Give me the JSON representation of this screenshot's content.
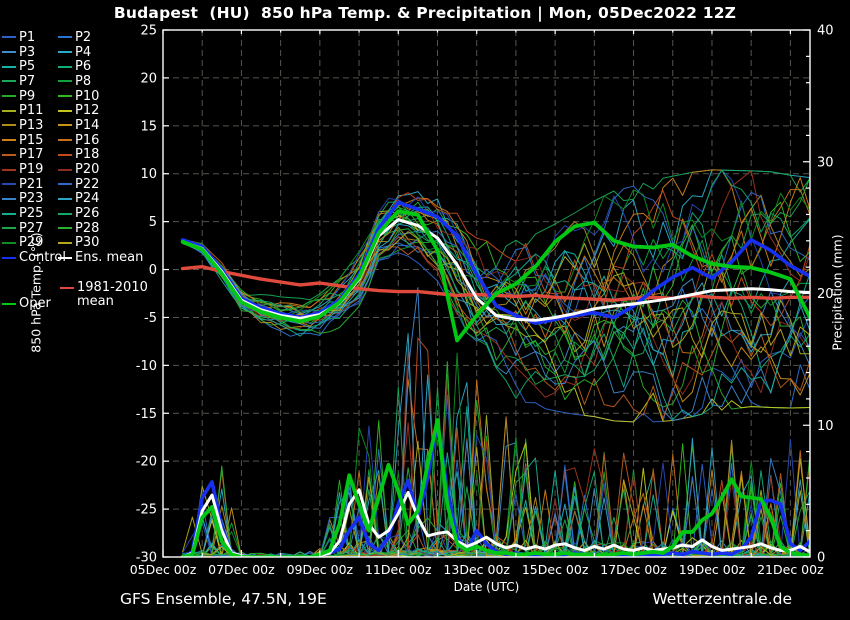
{
  "title": "Budapest  (HU)  850 hPa Temp. & Precipitation | Mon, 05Dec2022 12Z",
  "footer": {
    "left": "GFS Ensemble, 47.5N, 19E",
    "right": "Wetterzentrale.de"
  },
  "colors": {
    "background": "#000000",
    "frame": "#ffffff",
    "grid": "#55554d",
    "control": "#1730f0",
    "ens_mean": "#ffffff",
    "oper": "#00c814",
    "climate": "#e04a3c",
    "members": [
      "#2e62c8",
      "#2a74d4",
      "#3e8cc8",
      "#28aac8",
      "#14b4a4",
      "#10ac7c",
      "#18a858",
      "#10a03c",
      "#28aa28",
      "#30b81e",
      "#a8b020",
      "#c4c420",
      "#b08c1c",
      "#c89418",
      "#cc8018",
      "#c87018",
      "#b85c1c",
      "#c44a1c",
      "#a03420",
      "#8c2c20",
      "#2848b4",
      "#2e6ac8",
      "#3c84c8",
      "#2ca4c4",
      "#16ae90",
      "#14a868",
      "#1ca64c",
      "#28b030",
      "#108c22",
      "#b4a81e"
    ]
  },
  "legend": {
    "member_labels": [
      "P1",
      "P2",
      "P3",
      "P4",
      "P5",
      "P6",
      "P7",
      "P8",
      "P9",
      "P10",
      "P11",
      "P12",
      "P13",
      "P14",
      "P15",
      "P16",
      "P17",
      "P18",
      "P19",
      "P20",
      "P21",
      "P22",
      "P23",
      "P24",
      "P25",
      "P26",
      "P27",
      "P28",
      "P29",
      "P30"
    ],
    "control_label": "Control",
    "ens_mean_label": "Ens. mean",
    "oper_label": "Oper",
    "climate_label": "1981-2010 mean"
  },
  "chart_data": {
    "type": "line",
    "title": "Budapest (HU) 850 hPa Temp. & Precipitation | Mon, 05Dec2022 12Z",
    "xlabel": "Date (UTC)",
    "ylabel_left": "850 hPa Temp. (°C)",
    "ylabel_right": "Precipitation (mm)",
    "x_range_days": [
      0,
      16.5
    ],
    "ylim_left": [
      -30,
      25
    ],
    "ylim_right": [
      0,
      40
    ],
    "grid": "dashed",
    "axes": {
      "temp_ticks": [
        25,
        20,
        15,
        10,
        5,
        0,
        -5,
        -10,
        -15,
        -20,
        -25,
        -30
      ],
      "grid_temp_lines": [
        20,
        15,
        10,
        5,
        0,
        -5,
        -10,
        -15,
        -20,
        -25
      ],
      "precip_ticks": [
        40,
        30,
        20,
        10,
        0
      ],
      "precip_minor_step": 2,
      "x_minor_step_days": 1,
      "x_major": [
        {
          "day": 0,
          "label": "05Dec 00z"
        },
        {
          "day": 2,
          "label": "07Dec 00z"
        },
        {
          "day": 4,
          "label": "09Dec 00z"
        },
        {
          "day": 6,
          "label": "11Dec 00z"
        },
        {
          "day": 8,
          "label": "13Dec 00z"
        },
        {
          "day": 10,
          "label": "15Dec 00z"
        },
        {
          "day": 12,
          "label": "17Dec 00z"
        },
        {
          "day": 14,
          "label": "19Dec 00z"
        },
        {
          "day": 16,
          "label": "21Dec 00z"
        }
      ]
    },
    "series_start_day": 0.5,
    "temp_step_days": 0.5,
    "precip_step_days": 0.25,
    "series": {
      "ens_mean_temp": [
        2.9,
        2.2,
        -0.2,
        -3.2,
        -4.2,
        -4.8,
        -5.1,
        -4.7,
        -3.5,
        -1.0,
        3.5,
        5.2,
        4.6,
        3.3,
        0.5,
        -3.0,
        -4.8,
        -5.2,
        -5.3,
        -5.0,
        -4.6,
        -4.1,
        -3.8,
        -3.6,
        -3.3,
        -3.0,
        -2.6,
        -2.2,
        -2.1,
        -2.0,
        -2.1,
        -2.3,
        -2.4
      ],
      "control_temp": [
        3.1,
        2.4,
        0.0,
        -3.0,
        -4.0,
        -4.6,
        -5.0,
        -4.5,
        -3.2,
        -0.5,
        4.3,
        7.0,
        6.3,
        5.5,
        3.5,
        -0.5,
        -3.8,
        -4.8,
        -5.6,
        -5.2,
        -4.8,
        -4.5,
        -5.0,
        -3.8,
        -2.2,
        -0.8,
        0.2,
        -0.9,
        0.8,
        3.1,
        2.0,
        0.4,
        -0.7
      ],
      "oper_temp": [
        2.9,
        2.1,
        -0.4,
        -3.4,
        -4.4,
        -5.0,
        -5.4,
        -4.9,
        -3.4,
        -0.8,
        3.8,
        6.1,
        5.7,
        2.0,
        -7.4,
        -4.8,
        -2.5,
        -1.5,
        0.3,
        2.9,
        4.5,
        4.9,
        3.0,
        2.4,
        2.3,
        2.6,
        1.4,
        0.6,
        0.3,
        0.2,
        -0.3,
        -1.0,
        -5.0
      ],
      "climate_mean_temp": [
        0.1,
        0.3,
        -0.2,
        -0.6,
        -1.0,
        -1.3,
        -1.6,
        -1.4,
        -1.7,
        -2.0,
        -2.2,
        -2.3,
        -2.3,
        -2.5,
        -2.7,
        -2.6,
        -2.7,
        -2.8,
        -2.7,
        -2.9,
        -3.0,
        -3.1,
        -3.2,
        -3.0,
        -2.9,
        -3.0,
        -2.7,
        -2.9,
        -3.0,
        -2.9,
        -3.0,
        -2.9,
        -2.9
      ],
      "ens_mean_precip": [
        0,
        0.3,
        3.5,
        4.7,
        2.0,
        0.3,
        0.1,
        0,
        0,
        0,
        0,
        0,
        0,
        0,
        0.1,
        0.3,
        1.2,
        4.0,
        5.1,
        2.5,
        1.5,
        2.0,
        3.3,
        4.9,
        3.0,
        1.6,
        1.8,
        1.9,
        1.2,
        0.8,
        1.1,
        1.5,
        1.0,
        0.7,
        0.9,
        0.6,
        0.8,
        0.6,
        0.9,
        1.0,
        0.7,
        0.5,
        0.8,
        0.6,
        0.9,
        0.6,
        0.5,
        0.7,
        0.5,
        0.6,
        0.7,
        0.9,
        0.8,
        1.3,
        0.8,
        0.5,
        0.6,
        0.7,
        0.8,
        1.0,
        0.7,
        0.5,
        0.5,
        0.8,
        0.4
      ],
      "control_precip": [
        0,
        0.4,
        4.5,
        5.7,
        2.2,
        0.3,
        0.1,
        0,
        0,
        0,
        0,
        0,
        0,
        0,
        0.1,
        0.3,
        0.6,
        2.0,
        3.0,
        1.0,
        0.5,
        1.5,
        4.0,
        5.8,
        3.0,
        6.0,
        10.3,
        5.0,
        1.5,
        0.5,
        2.0,
        1.0,
        0.4,
        0.2,
        0.3,
        0.2,
        0.1,
        0.2,
        0.1,
        0.2,
        0.3,
        0.2,
        0.1,
        0.1,
        0.2,
        0.1,
        0.1,
        0.2,
        0.1,
        0.2,
        0.3,
        0.2,
        0.4,
        0.3,
        0.2,
        0.3,
        0.2,
        0.6,
        1.5,
        4.2,
        4.3,
        4.0,
        1.0,
        0.5,
        1.2
      ],
      "oper_precip": [
        0,
        0.2,
        3.0,
        3.8,
        1.2,
        0.2,
        0,
        0,
        0,
        0,
        0,
        0,
        0,
        0,
        0.2,
        0.5,
        2.5,
        6.2,
        4.0,
        2.0,
        4.5,
        7.0,
        5.0,
        2.5,
        3.5,
        7.0,
        10.4,
        4.0,
        1.0,
        0.5,
        0.8,
        0.5,
        0.3,
        0.3,
        0.2,
        0.2,
        0.3,
        0.2,
        0.2,
        0.3,
        0.2,
        0.2,
        0.1,
        0.2,
        0.2,
        0.3,
        0.2,
        0.3,
        0.4,
        0.3,
        0.8,
        1.9,
        1.9,
        2.8,
        3.3,
        4.5,
        5.9,
        4.6,
        4.5,
        4.4,
        3.0,
        0.8,
        0.3,
        0.2,
        0.1
      ]
    },
    "member_spread_temp": [
      0.4,
      0.6,
      0.8,
      1.0,
      1.2,
      1.3,
      1.4,
      1.5,
      1.7,
      1.9,
      2.1,
      2.3,
      2.6,
      3.0,
      3.6,
      4.2,
      5.0,
      5.5,
      6.0,
      6.5,
      7.0,
      7.5,
      8.0,
      8.2,
      8.4,
      8.5,
      8.5,
      8.4,
      8.3,
      8.2,
      8.2,
      8.1,
      8.0
    ],
    "member_precip_envelope": [
      0.5,
      6,
      8,
      0.5,
      0.3,
      0.3,
      0.4,
      1.0,
      6,
      10,
      12,
      14,
      22,
      20,
      16,
      14,
      12,
      10,
      8,
      8,
      8,
      9,
      8,
      8,
      8,
      9,
      10,
      9,
      9,
      8,
      8,
      9,
      8
    ]
  }
}
